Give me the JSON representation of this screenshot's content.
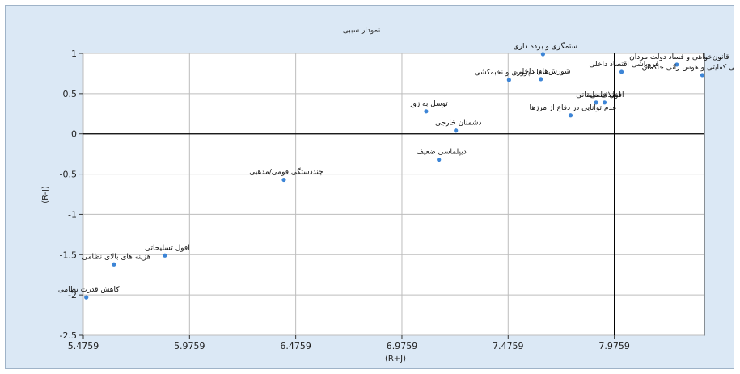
{
  "chart_data": {
    "type": "scatter",
    "title": "نمودار سببی",
    "xlabel": "(R+J)",
    "ylabel": "(R-J)",
    "xlim": [
      5.4759,
      8.4
    ],
    "ylim": [
      -2.5,
      1
    ],
    "x_ticks": [
      "5.4759",
      "5.9759",
      "6.4759",
      "6.9759",
      "7.4759",
      "7.9759"
    ],
    "y_ticks": [
      "-2.5",
      "-2",
      "-1.5",
      "-1",
      "-0.5",
      "0",
      "0.5",
      "1"
    ],
    "grid": true,
    "reference_lines": {
      "x": 7.9759,
      "y": 0
    },
    "point_color": "#3d85d6",
    "points": [
      {
        "label": "کاهش قدرت نظامی",
        "x": 5.49,
        "y": -2.03
      },
      {
        "label": "هزینه های بالای نظامی",
        "x": 5.62,
        "y": -1.62
      },
      {
        "label": "افول تسلیحاتی",
        "x": 5.86,
        "y": -1.51
      },
      {
        "label": "چنددستگی قومی/مذهبی",
        "x": 6.42,
        "y": -0.57
      },
      {
        "label": "دیپلماسی ضعیف",
        "x": 7.15,
        "y": -0.32
      },
      {
        "label": "دشمنان خارجی",
        "x": 7.23,
        "y": 0.04
      },
      {
        "label": "توسل به زور",
        "x": 7.09,
        "y": 0.28
      },
      {
        "label": "ستمگری و برده داری",
        "x": 7.64,
        "y": 0.99
      },
      {
        "label": "سفله پروری و نخبه‌کشی",
        "x": 7.48,
        "y": 0.67
      },
      {
        "label": "شورش‌های داخلی",
        "x": 7.63,
        "y": 0.68
      },
      {
        "label": "عدم توانایی در دفاع از مرزها",
        "x": 7.77,
        "y": 0.23
      },
      {
        "label": "اختلاف طبقاتی",
        "x": 7.89,
        "y": 0.39
      },
      {
        "label": "افول علمی",
        "x": 7.93,
        "y": 0.39
      },
      {
        "label": "فروپاشی اقتصاد داخلی",
        "x": 8.01,
        "y": 0.77
      },
      {
        "label": "قانون‌خواهی و فساد دولت مردان",
        "x": 8.27,
        "y": 0.86
      },
      {
        "label": "بی کفایتی و هوس رانی حاکمان",
        "x": 8.39,
        "y": 0.73
      }
    ]
  }
}
